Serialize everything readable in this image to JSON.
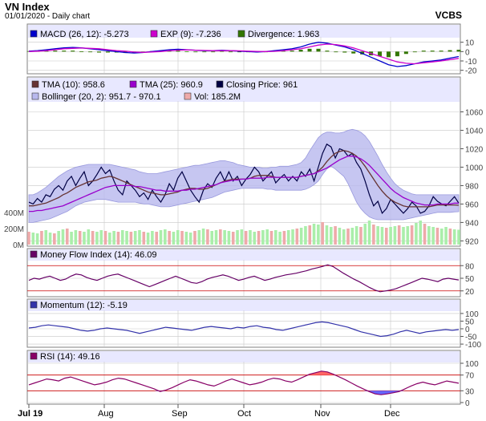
{
  "header": {
    "title": "VN Index",
    "subtitle": "01/01/2020 - Daily chart",
    "brand": "VCBS"
  },
  "colors": {
    "bg_band": "#e8e8ff",
    "grid": "#c8c8c8",
    "macd": "#0000cc",
    "exp": "#cc00cc",
    "divergence": "#337700",
    "tma10": "#663333",
    "tma25": "#9900cc",
    "close": "#000044",
    "bollinger_fill": "#b8b8ee",
    "vol_up": "#aaeeaa",
    "vol_down": "#eeaaaa",
    "mfi": "#660066",
    "momentum": "#3333aa",
    "rsi": "#880066",
    "overbought_fill": "#ff6666",
    "oversold_fill": "#6666ff",
    "threshold": "#cc0000"
  },
  "chart_data": [
    {
      "type": "bar",
      "legend": [
        {
          "label": "MACD (26, 12): -5.273",
          "color": "#0000cc"
        },
        {
          "label": "EXP (9): -7.236",
          "color": "#cc00cc"
        },
        {
          "label": "Divergence: 1.963",
          "color": "#337700"
        }
      ],
      "yticks": [
        "10",
        "0",
        "-10",
        "-20"
      ],
      "ylim": [
        -22,
        14
      ],
      "series": [
        {
          "name": "MACD (26, 12)",
          "values": [
            0.5,
            1,
            2,
            3,
            4,
            4.5,
            4,
            3,
            2,
            1,
            0,
            -1,
            -1.5,
            -1,
            0,
            1,
            2,
            2.5,
            2,
            1.5,
            1,
            1,
            1.5,
            1,
            0.5,
            0,
            -0.5,
            0,
            1,
            2,
            3,
            5,
            8,
            10,
            9,
            7,
            5,
            2,
            -2,
            -6,
            -10,
            -14,
            -16,
            -15,
            -13,
            -11,
            -10,
            -9,
            -7,
            -5.273
          ]
        },
        {
          "name": "EXP (9)",
          "values": [
            0,
            0.5,
            1,
            2,
            3,
            3.5,
            3.8,
            3.5,
            3,
            2,
            1,
            0.5,
            -0.5,
            -0.8,
            -0.5,
            0,
            1,
            1.5,
            1.8,
            1.5,
            1.2,
            1,
            1,
            1,
            0.8,
            0.5,
            0.2,
            0,
            0.3,
            1,
            2,
            3,
            5,
            7,
            8,
            7.5,
            6,
            4,
            1,
            -2,
            -5,
            -8,
            -11,
            -12.5,
            -13,
            -12,
            -11,
            -10,
            -8.5,
            -7.236
          ]
        }
      ]
    },
    {
      "type": "line",
      "legend": [
        {
          "label": "TMA (10): 958.6",
          "color": "#663333"
        },
        {
          "label": "TMA (25): 960.9",
          "color": "#9900cc"
        },
        {
          "label": "Closing Price: 961",
          "color": "#000044"
        },
        {
          "label": "Bollinger (20, 2): 951.7 - 970.1",
          "color": "#b8b8ee"
        },
        {
          "label": "Vol: 185.2M",
          "color": "#eeaaaa"
        }
      ],
      "yticks": [
        "1060",
        "1040",
        "1020",
        "1000",
        "980",
        "960",
        "940",
        "920"
      ],
      "ylim": [
        916,
        1070
      ],
      "vol_ticks": [
        "400M",
        "200M",
        "0M"
      ],
      "vol_lim": [
        0,
        600
      ],
      "x_labels": [
        "Jul 19",
        "Aug",
        "Sep",
        "Oct",
        "Nov",
        "Dec"
      ],
      "series": [
        {
          "name": "Closing Price",
          "values": [
            962,
            960,
            966,
            962,
            970,
            968,
            976,
            980,
            975,
            985,
            990,
            980,
            988,
            995,
            980,
            985,
            992,
            1000,
            993,
            997,
            985,
            975,
            970,
            985,
            980,
            975,
            968,
            972,
            965,
            975,
            968,
            962,
            970,
            982,
            975,
            988,
            995,
            985,
            975,
            968,
            962,
            975,
            982,
            978,
            988,
            995,
            985,
            995,
            985,
            990,
            980,
            987,
            992,
            1000,
            995,
            985,
            990,
            995,
            983,
            988,
            992,
            985,
            990,
            985,
            995,
            990,
            998,
            985,
            1000,
            1015,
            1025,
            1022,
            1010,
            1020,
            1018,
            1012,
            1015,
            1005,
            998,
            985,
            970,
            958,
            963,
            950,
            955,
            965,
            960,
            955,
            950,
            955,
            962,
            958,
            950,
            952,
            958,
            968,
            963,
            960,
            958,
            963,
            968,
            961
          ]
        },
        {
          "name": "TMA (10)",
          "values": [
            958,
            958,
            959,
            960,
            961,
            963,
            965,
            967,
            970,
            972,
            975,
            978,
            980,
            982,
            984,
            985,
            986,
            988,
            989,
            990,
            989,
            987,
            985,
            983,
            981,
            979,
            977,
            975,
            973,
            972,
            971,
            970,
            970,
            971,
            972,
            973,
            975,
            976,
            977,
            977,
            976,
            976,
            977,
            979,
            981,
            983,
            985,
            986,
            987,
            987,
            987,
            987,
            988,
            990,
            991,
            991,
            991,
            990,
            989,
            989,
            989,
            989,
            989,
            989,
            990,
            991,
            992,
            993,
            996,
            1000,
            1006,
            1011,
            1015,
            1017,
            1018,
            1017,
            1015,
            1012,
            1007,
            1001,
            994,
            987,
            980,
            974,
            969,
            965,
            962,
            960,
            958,
            957,
            957,
            957,
            957,
            957,
            957,
            958,
            959,
            959,
            959,
            959,
            959,
            958.6
          ]
        },
        {
          "name": "TMA (25)",
          "values": [
            952,
            952,
            953,
            953,
            954,
            955,
            956,
            957,
            958,
            960,
            962,
            964,
            966,
            968,
            970,
            972,
            974,
            976,
            978,
            979,
            980,
            980,
            980,
            980,
            980,
            979,
            979,
            978,
            977,
            976,
            975,
            975,
            974,
            974,
            974,
            974,
            975,
            975,
            976,
            976,
            977,
            978,
            979,
            980,
            981,
            983,
            984,
            985,
            986,
            986,
            987,
            987,
            988,
            988,
            988,
            988,
            989,
            989,
            989,
            989,
            989,
            989,
            989,
            989,
            990,
            991,
            992,
            993,
            995,
            997,
            999,
            1002,
            1005,
            1008,
            1010,
            1012,
            1012,
            1011,
            1009,
            1006,
            1002,
            997,
            992,
            987,
            982,
            977,
            973,
            970,
            967,
            965,
            963,
            961,
            960,
            959,
            959,
            959,
            960,
            960,
            960,
            960,
            961,
            960.9
          ]
        },
        {
          "name": "Bollinger upper",
          "values": [
            970,
            970,
            972,
            975,
            978,
            982,
            986,
            990,
            993,
            996,
            998,
            1000,
            1001,
            1002,
            1003,
            1003,
            1003,
            1003,
            1003,
            1003,
            1002,
            1001,
            1000,
            999,
            998,
            997,
            995,
            994,
            993,
            993,
            993,
            994,
            995,
            996,
            997,
            998,
            999,
            1000,
            1001,
            1002,
            1002,
            1003,
            1004,
            1005,
            1006,
            1007,
            1007,
            1006,
            1005,
            1003,
            1002,
            1001,
            1000,
            1000,
            1000,
            999,
            999,
            1000,
            1000,
            1001,
            1001,
            1001,
            1002,
            1003,
            1005,
            1010,
            1018,
            1025,
            1032,
            1036,
            1038,
            1038,
            1037,
            1037,
            1038,
            1040,
            1041,
            1040,
            1038,
            1034,
            1028,
            1020,
            1012,
            1003,
            995,
            988,
            982,
            978,
            975,
            973,
            971,
            970,
            970,
            970,
            970,
            970,
            970,
            970,
            970,
            970,
            970,
            970.1
          ]
        },
        {
          "name": "Bollinger lower",
          "values": [
            940,
            940,
            941,
            942,
            943,
            944,
            946,
            948,
            950,
            952,
            955,
            958,
            960,
            962,
            963,
            964,
            965,
            965,
            965,
            964,
            963,
            962,
            962,
            962,
            962,
            962,
            961,
            960,
            960,
            959,
            958,
            957,
            957,
            957,
            958,
            959,
            960,
            961,
            962,
            963,
            964,
            965,
            966,
            967,
            969,
            971,
            973,
            974,
            975,
            976,
            977,
            977,
            977,
            977,
            977,
            977,
            976,
            976,
            975,
            975,
            975,
            975,
            975,
            975,
            975,
            976,
            978,
            981,
            985,
            992,
            998,
            1001,
            998,
            994,
            990,
            982,
            972,
            962,
            955,
            950,
            946,
            944,
            943,
            943,
            943,
            943,
            943,
            943,
            943,
            944,
            945,
            946,
            947,
            948,
            949,
            950,
            951,
            951,
            951,
            951,
            951.5,
            951.7
          ]
        },
        {
          "name": "Vol",
          "values": [
            160,
            150,
            140,
            170,
            180,
            150,
            140,
            170,
            190,
            200,
            160,
            180,
            170,
            160,
            190,
            170,
            160,
            180,
            170,
            150,
            170,
            160,
            180,
            170,
            160,
            170,
            180,
            160,
            150,
            170,
            160,
            180,
            190,
            170,
            160,
            180,
            170,
            160,
            150,
            170,
            180,
            200,
            190,
            170,
            180,
            190,
            180,
            170,
            160,
            180,
            190,
            170,
            180,
            160,
            170,
            180,
            190,
            170,
            180,
            160,
            170,
            180,
            190,
            200,
            210,
            230,
            240,
            260,
            250,
            280,
            240,
            220,
            230,
            210,
            190,
            200,
            210,
            230,
            220,
            260,
            300,
            250,
            230,
            220,
            210,
            220,
            230,
            240,
            220,
            230,
            240,
            270,
            300,
            260,
            230,
            220,
            210,
            200,
            220,
            200,
            190,
            185.2
          ]
        }
      ]
    },
    {
      "type": "line",
      "legend": [
        {
          "label": "Money Flow Index (14): 46.09",
          "color": "#660066"
        }
      ],
      "yticks": [
        "80",
        "50",
        "20"
      ],
      "ylim": [
        10,
        90
      ],
      "series": [
        {
          "name": "Money Flow Index (14)",
          "values": [
            45,
            50,
            48,
            52,
            55,
            50,
            45,
            48,
            55,
            60,
            58,
            52,
            48,
            45,
            50,
            55,
            58,
            60,
            55,
            50,
            45,
            40,
            35,
            30,
            35,
            40,
            45,
            50,
            55,
            50,
            45,
            40,
            38,
            42,
            48,
            52,
            55,
            58,
            55,
            50,
            45,
            48,
            52,
            55,
            50,
            45,
            48,
            52,
            55,
            58,
            60,
            62,
            65,
            68,
            72,
            75,
            78,
            82,
            78,
            70,
            62,
            55,
            48,
            42,
            35,
            28,
            22,
            18,
            20,
            22,
            25,
            30,
            35,
            40,
            45,
            50,
            48,
            45,
            42,
            48,
            50,
            48,
            46.09
          ]
        }
      ]
    },
    {
      "type": "line",
      "legend": [
        {
          "label": "Momentum (12): -5.19",
          "color": "#3333aa"
        }
      ],
      "yticks": [
        "100",
        "50",
        "0",
        "-50",
        "-100"
      ],
      "ylim": [
        -110,
        110
      ],
      "series": [
        {
          "name": "Momentum (12)",
          "values": [
            5,
            10,
            20,
            25,
            20,
            15,
            10,
            0,
            -10,
            -15,
            -10,
            0,
            5,
            0,
            -5,
            -10,
            -20,
            -30,
            -20,
            -10,
            0,
            10,
            5,
            0,
            -5,
            -10,
            0,
            10,
            15,
            10,
            5,
            0,
            10,
            5,
            15,
            20,
            10,
            5,
            -5,
            -10,
            0,
            10,
            20,
            30,
            40,
            45,
            40,
            30,
            20,
            10,
            -5,
            -20,
            -30,
            -40,
            -50,
            -45,
            -35,
            -20,
            -10,
            -20,
            -30,
            -20,
            -15,
            -10,
            -5,
            -10,
            -5.19
          ]
        }
      ]
    },
    {
      "type": "line",
      "legend": [
        {
          "label": "RSI (14): 49.16",
          "color": "#880066"
        }
      ],
      "yticks": [
        "100",
        "70",
        "30",
        "0"
      ],
      "ylim": [
        0,
        100
      ],
      "series": [
        {
          "name": "RSI (14)",
          "values": [
            45,
            50,
            55,
            60,
            58,
            55,
            62,
            65,
            60,
            55,
            50,
            45,
            48,
            52,
            58,
            62,
            60,
            55,
            50,
            45,
            40,
            35,
            28,
            32,
            38,
            45,
            52,
            58,
            55,
            50,
            45,
            42,
            48,
            55,
            60,
            55,
            50,
            45,
            48,
            52,
            58,
            62,
            60,
            55,
            52,
            58,
            65,
            72,
            76,
            80,
            78,
            72,
            65,
            58,
            50,
            42,
            35,
            28,
            22,
            20,
            22,
            25,
            28,
            35,
            42,
            48,
            52,
            48,
            45,
            50,
            55,
            52,
            49.16
          ]
        }
      ]
    }
  ]
}
